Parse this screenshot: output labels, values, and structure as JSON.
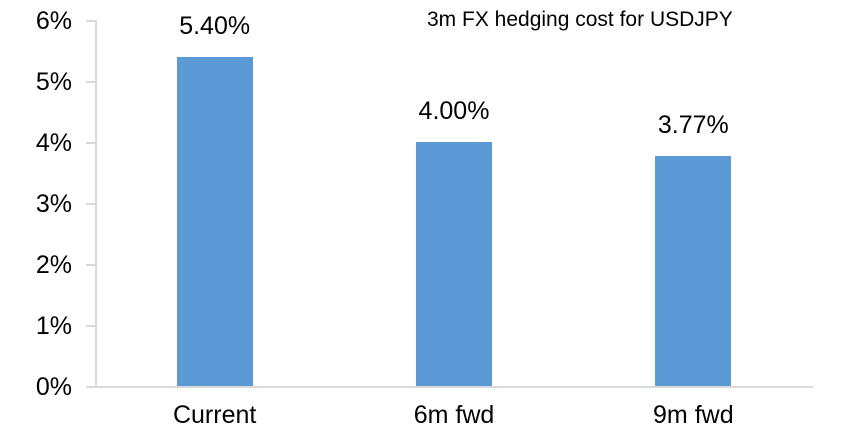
{
  "chart_data": {
    "type": "bar",
    "title": "3m FX hedging cost for USDJPY",
    "categories": [
      "Current",
      "6m fwd",
      "9m fwd"
    ],
    "values": [
      5.4,
      4.0,
      3.77
    ],
    "data_labels": [
      "5.40%",
      "4.00%",
      "3.77%"
    ],
    "y_tick_labels": [
      "6%",
      "5%",
      "4%",
      "3%",
      "2%",
      "1%",
      "0%"
    ],
    "y_tick_values": [
      6,
      5,
      4,
      3,
      2,
      1,
      0
    ],
    "ylim": [
      0,
      6
    ],
    "xlabel": "",
    "ylabel": "",
    "grid": false,
    "legend": null,
    "colors": {
      "bar": "#5b9ad5",
      "axis": "#d9d9d9",
      "text": "#000000",
      "background": "#ffffff"
    }
  }
}
